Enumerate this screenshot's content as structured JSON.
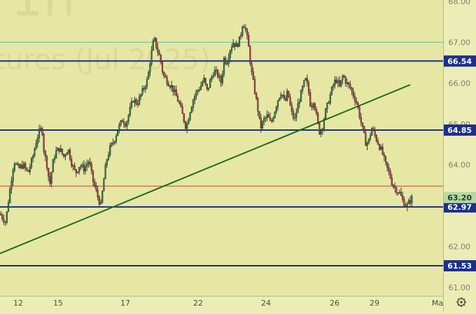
{
  "chart_data": {
    "type": "candlestick",
    "watermark": ", 1h",
    "watermark_subtitle": "tures (Jul 2025)",
    "y_axis": {
      "min": 61.0,
      "max": 68.0,
      "ticks": [
        "61.00",
        "62.00",
        "64.00",
        "65.00",
        "66.00",
        "67.00",
        "68.00"
      ]
    },
    "x_axis": {
      "ticks": [
        "12",
        "15",
        "17",
        "22",
        "24",
        "26",
        "29",
        "Ma"
      ]
    },
    "horizontal_levels": [
      {
        "price": 66.54,
        "label": "66.54",
        "color": "#1c2f8c"
      },
      {
        "price": 64.85,
        "label": "64.85",
        "color": "#1c2f8c"
      },
      {
        "price": 62.97,
        "label": "62.97",
        "color": "#1c2f8c"
      },
      {
        "price": 61.53,
        "label": "61.53",
        "color": "#1c2f8c"
      }
    ],
    "reference_lines": [
      {
        "price": 67.0,
        "color": "#5cc6a8"
      },
      {
        "price": 63.48,
        "color": "#d04040"
      }
    ],
    "current_price": {
      "price": 63.2,
      "label": "63.20",
      "color": "#b8d7a4"
    },
    "trendline": {
      "from": [
        0.0,
        61.83
      ],
      "to": [
        586.0,
        65.96
      ],
      "color": "#1e6d1e"
    },
    "price_path": [
      [
        0,
        62.8
      ],
      [
        8,
        62.6
      ],
      [
        15,
        63.5
      ],
      [
        20,
        64.1
      ],
      [
        26,
        63.9
      ],
      [
        33,
        64.0
      ],
      [
        40,
        63.8
      ],
      [
        47,
        64.2
      ],
      [
        52,
        64.6
      ],
      [
        56,
        64.8
      ],
      [
        60,
        64.9
      ],
      [
        63,
        64.3
      ],
      [
        67,
        64.0
      ],
      [
        71,
        63.5
      ],
      [
        75,
        64.0
      ],
      [
        79,
        64.3
      ],
      [
        85,
        64.4
      ],
      [
        91,
        64.2
      ],
      [
        97,
        64.4
      ],
      [
        103,
        64.0
      ],
      [
        108,
        63.8
      ],
      [
        114,
        64.0
      ],
      [
        120,
        63.9
      ],
      [
        127,
        64.1
      ],
      [
        133,
        63.6
      ],
      [
        140,
        63.2
      ],
      [
        144,
        63.0
      ],
      [
        148,
        63.6
      ],
      [
        152,
        64.1
      ],
      [
        157,
        64.4
      ],
      [
        163,
        64.6
      ],
      [
        169,
        64.9
      ],
      [
        175,
        65.1
      ],
      [
        180,
        65.0
      ],
      [
        185,
        65.3
      ],
      [
        190,
        65.6
      ],
      [
        196,
        65.5
      ],
      [
        201,
        65.7
      ],
      [
        206,
        65.9
      ],
      [
        211,
        66.1
      ],
      [
        215,
        66.6
      ],
      [
        220,
        67.1
      ],
      [
        225,
        66.8
      ],
      [
        229,
        66.6
      ],
      [
        233,
        66.2
      ],
      [
        237,
        66.1
      ],
      [
        241,
        66.0
      ],
      [
        246,
        65.9
      ],
      [
        251,
        65.7
      ],
      [
        256,
        65.5
      ],
      [
        261,
        65.2
      ],
      [
        266,
        64.9
      ],
      [
        271,
        65.3
      ],
      [
        276,
        65.6
      ],
      [
        281,
        65.8
      ],
      [
        286,
        65.9
      ],
      [
        291,
        66.1
      ],
      [
        296,
        65.8
      ],
      [
        301,
        66.1
      ],
      [
        306,
        66.3
      ],
      [
        311,
        66.2
      ],
      [
        316,
        66.0
      ],
      [
        320,
        66.6
      ],
      [
        324,
        66.5
      ],
      [
        328,
        66.8
      ],
      [
        333,
        67.0
      ],
      [
        338,
        66.9
      ],
      [
        343,
        67.1
      ],
      [
        347,
        67.5
      ],
      [
        351,
        67.3
      ],
      [
        355,
        66.9
      ],
      [
        359,
        66.3
      ],
      [
        363,
        65.9
      ],
      [
        368,
        65.4
      ],
      [
        372,
        64.9
      ],
      [
        377,
        65.1
      ],
      [
        382,
        65.2
      ],
      [
        387,
        65.0
      ],
      [
        392,
        65.3
      ],
      [
        397,
        65.6
      ],
      [
        402,
        65.8
      ],
      [
        407,
        65.5
      ],
      [
        411,
        65.8
      ],
      [
        416,
        65.3
      ],
      [
        421,
        65.1
      ],
      [
        426,
        65.5
      ],
      [
        431,
        65.8
      ],
      [
        436,
        66.1
      ],
      [
        440,
        65.9
      ],
      [
        444,
        65.4
      ],
      [
        448,
        65.6
      ],
      [
        452,
        65.2
      ],
      [
        456,
        64.8
      ],
      [
        460,
        64.9
      ],
      [
        465,
        65.3
      ],
      [
        470,
        65.6
      ],
      [
        475,
        65.9
      ],
      [
        480,
        66.1
      ],
      [
        485,
        65.9
      ],
      [
        490,
        66.2
      ],
      [
        495,
        66.0
      ],
      [
        500,
        65.9
      ],
      [
        505,
        65.7
      ],
      [
        510,
        65.5
      ],
      [
        515,
        65.1
      ],
      [
        519,
        64.8
      ],
      [
        523,
        64.5
      ],
      [
        527,
        64.6
      ],
      [
        531,
        64.9
      ],
      [
        536,
        64.7
      ],
      [
        541,
        64.5
      ],
      [
        546,
        64.3
      ],
      [
        551,
        64.0
      ],
      [
        556,
        63.8
      ],
      [
        561,
        63.5
      ],
      [
        566,
        63.4
      ],
      [
        571,
        63.3
      ],
      [
        576,
        63.1
      ],
      [
        581,
        62.98
      ],
      [
        585,
        63.1
      ],
      [
        589,
        63.2
      ]
    ]
  }
}
